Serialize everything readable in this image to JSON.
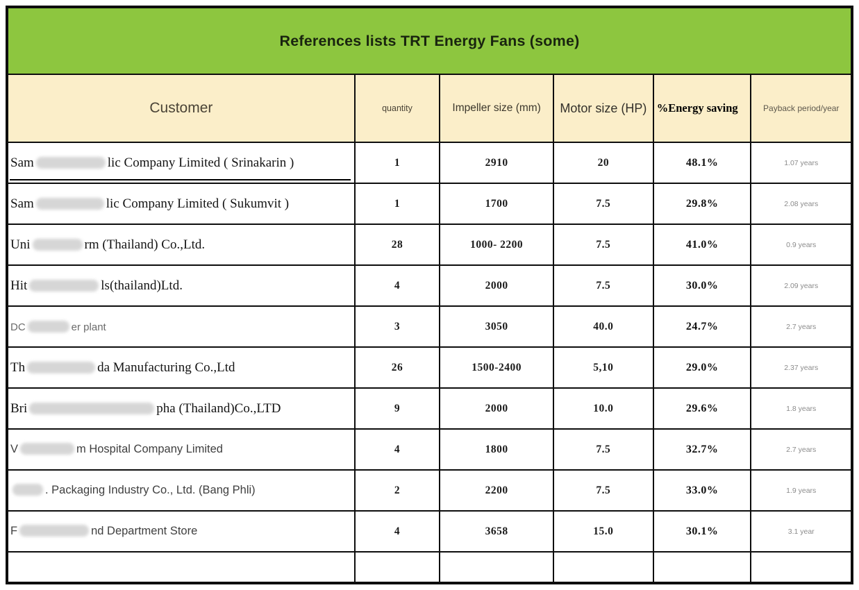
{
  "title": "References lists TRT Energy Fans (some)",
  "colors": {
    "title_bg": "#8dc63f",
    "header_bg": "#fbeec9",
    "border": "#0d0d0d"
  },
  "columns": [
    {
      "key": "customer",
      "label": "Customer"
    },
    {
      "key": "quantity",
      "label": "quantity"
    },
    {
      "key": "impeller",
      "label": "Impeller size (mm)"
    },
    {
      "key": "motor",
      "label": "Motor size (HP)"
    },
    {
      "key": "saving",
      "label": "%Energy saving"
    },
    {
      "key": "payback",
      "label": "Payback period/year"
    }
  ],
  "rows": [
    {
      "customer_prefix": "Sam",
      "customer_redact": 100,
      "customer_suffix": "lic Company Limited ( Srinakarin )",
      "customer_font": "serif",
      "underline": true,
      "quantity": "1",
      "impeller": "2910",
      "motor": "20",
      "saving": "48.1%",
      "payback": "1.07 years"
    },
    {
      "customer_prefix": "Sam",
      "customer_redact": 98,
      "customer_suffix": "lic Company Limited ( Sukumvit )",
      "customer_font": "serif",
      "quantity": "1",
      "impeller": "1700",
      "motor": "7.5",
      "saving": "29.8%",
      "payback": "2.08 years"
    },
    {
      "customer_prefix": "Uni",
      "customer_redact": 72,
      "customer_suffix": "rm (Thailand) Co.,Ltd.",
      "customer_font": "serif",
      "quantity": "28",
      "impeller": "1000- 2200",
      "motor": "7.5",
      "saving": "41.0%",
      "payback": "0.9 years"
    },
    {
      "customer_prefix": "Hit",
      "customer_redact": 100,
      "customer_suffix": "ls(thailand)Ltd.",
      "customer_font": "serif",
      "quantity": "4",
      "impeller": "2000",
      "motor": "7.5",
      "saving": "30.0%",
      "payback": "2.09 years"
    },
    {
      "customer_prefix": "DC",
      "customer_redact": 60,
      "customer_suffix": "er plant",
      "customer_font": "sans-light",
      "quantity": "3",
      "impeller": "3050",
      "motor": "40.0",
      "saving": "24.7%",
      "payback": "2.7 years"
    },
    {
      "customer_prefix": "Th",
      "customer_redact": 98,
      "customer_suffix": "da Manufacturing Co.,Ltd",
      "customer_font": "serif",
      "quantity": "26",
      "impeller": "1500-2400",
      "motor": "5,10",
      "saving": "29.0%",
      "payback": "2.37 years"
    },
    {
      "customer_prefix": "Bri",
      "customer_redact": 180,
      "customer_suffix": "pha (Thailand)Co.,LTD",
      "customer_font": "serif",
      "quantity": "9",
      "impeller": "2000",
      "motor": "10.0",
      "saving": "29.6%",
      "payback": "1.8 years"
    },
    {
      "customer_prefix": "V",
      "customer_redact": 78,
      "customer_suffix": "m Hospital Company Limited",
      "customer_font": "sans",
      "quantity": "4",
      "impeller": "1800",
      "motor": "7.5",
      "saving": "32.7%",
      "payback": "2.7 years"
    },
    {
      "customer_prefix": "",
      "customer_redact": 44,
      "customer_suffix": ". Packaging Industry Co., Ltd. (Bang Phli)",
      "customer_font": "sans",
      "quantity": "2",
      "impeller": "2200",
      "motor": "7.5",
      "saving": "33.0%",
      "payback": "1.9 years"
    },
    {
      "customer_prefix": "F",
      "customer_redact": 100,
      "customer_suffix": "nd Department Store",
      "customer_font": "sans",
      "quantity": "4",
      "impeller": "3658",
      "motor": "15.0",
      "saving": "30.1%",
      "payback": "3.1 year"
    },
    {
      "empty": true
    }
  ]
}
